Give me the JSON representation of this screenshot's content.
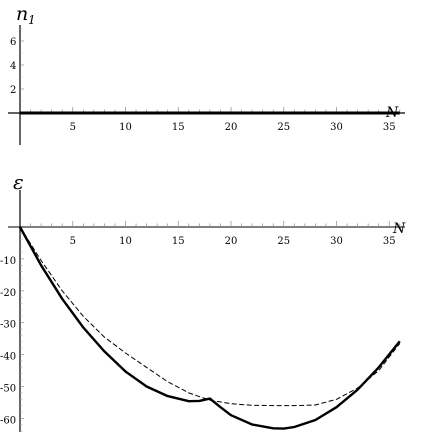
{
  "chart_data": [
    {
      "type": "line",
      "ylabel": "n",
      "ylabel_sub": "1",
      "xlabel": "N",
      "xlim": [
        0,
        36
      ],
      "ylim": [
        0,
        7
      ],
      "x_ticks": [
        5,
        10,
        15,
        20,
        25,
        30,
        35
      ],
      "x_tick_labels": [
        "5",
        "10",
        "15",
        "20",
        "25",
        "30",
        "35"
      ],
      "y_ticks": [
        2,
        4,
        6
      ],
      "y_tick_labels": [
        "2",
        "4",
        "6"
      ],
      "grid": false,
      "series": [
        {
          "style": "solid",
          "x": [
            0,
            36
          ],
          "y": [
            0,
            0
          ]
        }
      ]
    },
    {
      "type": "line",
      "ylabel": "ε",
      "xlabel": "N",
      "xlim": [
        0,
        36
      ],
      "ylim": [
        -64,
        0
      ],
      "x_ticks": [
        5,
        10,
        15,
        20,
        25,
        30,
        35
      ],
      "x_tick_labels": [
        "5",
        "10",
        "15",
        "20",
        "25",
        "30",
        "35"
      ],
      "y_ticks": [
        -10,
        -20,
        -30,
        -40,
        -50,
        -60
      ],
      "y_tick_labels": [
        "-10",
        "-20",
        "-30",
        "-40",
        "-50",
        "-60"
      ],
      "grid": false,
      "series": [
        {
          "style": "solid",
          "x": [
            0,
            2,
            4,
            6,
            8,
            10,
            12,
            14,
            16,
            17,
            18,
            19,
            20,
            22,
            24,
            25,
            26,
            28,
            30,
            32,
            34,
            36
          ],
          "y": [
            0,
            -12,
            -22.5,
            -31.5,
            -39,
            -45.3,
            -50,
            -53,
            -54.6,
            -54.5,
            -53.8,
            -56.5,
            -59,
            -61.9,
            -63.1,
            -63.2,
            -62.7,
            -60.5,
            -56.5,
            -51,
            -44,
            -35.8
          ]
        },
        {
          "style": "dashed",
          "x": [
            0,
            2,
            4,
            6,
            8,
            10,
            12,
            14,
            16,
            18,
            20,
            22,
            24,
            26,
            28,
            30,
            32,
            34,
            36
          ],
          "y": [
            0,
            -10.5,
            -20,
            -28,
            -34.5,
            -39.5,
            -44,
            -48.5,
            -52,
            -54.3,
            -55.4,
            -55.9,
            -56,
            -56,
            -55.8,
            -54,
            -50.5,
            -45,
            -36.5
          ]
        }
      ]
    }
  ]
}
